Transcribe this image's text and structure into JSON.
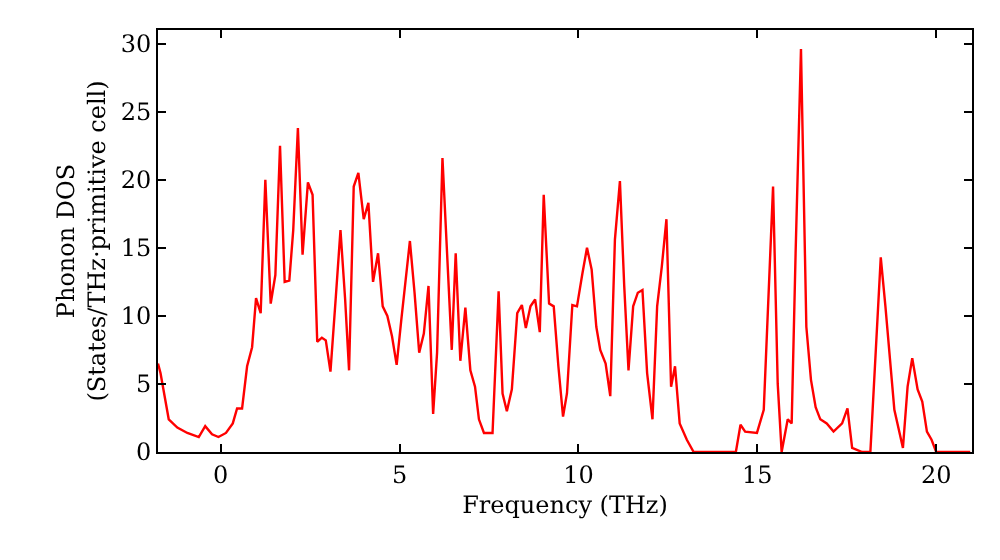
{
  "chart_data": {
    "type": "line",
    "xlabel": "Frequency (THz)",
    "ylabel": "Phonon DOS\n(States/THz·primitive cell)",
    "xlim": [
      -1.75,
      21
    ],
    "ylim": [
      0,
      31
    ],
    "xticks": [
      0,
      5,
      10,
      15,
      20
    ],
    "yticks": [
      0,
      5,
      10,
      15,
      20,
      25,
      30
    ],
    "grid": false,
    "marker": "none",
    "line_style": "solid",
    "x": [
      -1.75,
      -1.68,
      -1.45,
      -1.21,
      -0.93,
      -0.61,
      -0.43,
      -0.24,
      -0.06,
      0.15,
      0.34,
      0.46,
      0.6,
      0.74,
      0.88,
      0.99,
      1.12,
      1.25,
      1.4,
      1.53,
      1.66,
      1.79,
      1.92,
      2.03,
      2.16,
      2.29,
      2.44,
      2.57,
      2.7,
      2.83,
      2.94,
      3.07,
      3.22,
      3.35,
      3.48,
      3.59,
      3.72,
      3.85,
      4.0,
      4.13,
      4.26,
      4.4,
      4.53,
      4.66,
      4.79,
      4.92,
      5.05,
      5.29,
      5.42,
      5.55,
      5.68,
      5.81,
      5.94,
      6.05,
      6.2,
      6.46,
      6.57,
      6.7,
      6.84,
      6.98,
      7.11,
      7.22,
      7.36,
      7.6,
      7.77,
      7.88,
      8.0,
      8.14,
      8.29,
      8.42,
      8.53,
      8.66,
      8.79,
      8.92,
      9.03,
      9.18,
      9.31,
      9.44,
      9.57,
      9.68,
      9.83,
      9.96,
      10.11,
      10.24,
      10.37,
      10.5,
      10.61,
      10.76,
      10.89,
      11.02,
      11.16,
      11.28,
      11.4,
      11.53,
      11.66,
      11.79,
      11.92,
      12.07,
      12.2,
      12.33,
      12.46,
      12.59,
      12.7,
      12.83,
      13.03,
      13.22,
      14.4,
      14.53,
      14.66,
      14.99,
      15.18,
      15.44,
      15.57,
      15.68,
      15.85,
      15.96,
      16.07,
      16.22,
      16.37,
      16.5,
      16.63,
      16.76,
      16.94,
      17.13,
      17.37,
      17.52,
      17.65,
      17.93,
      18.16,
      18.45,
      18.58,
      18.83,
      19.07,
      19.2,
      19.33,
      19.48,
      19.61,
      19.74,
      19.87,
      20.0,
      20.95
    ],
    "series": [
      {
        "color": "#ff0000",
        "values": [
          6.5,
          5.8,
          2.4,
          1.8,
          1.4,
          1.1,
          1.9,
          1.3,
          1.1,
          1.4,
          2.1,
          3.2,
          3.2,
          6.3,
          7.7,
          11.3,
          10.2,
          20,
          10.9,
          13.0,
          22.5,
          12.5,
          12.6,
          16.3,
          23.8,
          14.5,
          19.8,
          18.9,
          8.1,
          8.4,
          8.2,
          5.9,
          11.4,
          16.3,
          11.2,
          6.0,
          19.5,
          20.5,
          17.1,
          18.3,
          12.5,
          14.6,
          10.7,
          10.0,
          8.5,
          6.4,
          9.7,
          15.5,
          11.7,
          7.3,
          8.7,
          12.2,
          2.8,
          7.3,
          21.6,
          7.5,
          14.6,
          6.7,
          10.6,
          6.0,
          4.8,
          2.4,
          1.4,
          1.4,
          11.8,
          4.3,
          3.0,
          4.6,
          10.2,
          10.8,
          9.1,
          10.7,
          11.2,
          8.8,
          18.9,
          10.9,
          10.7,
          6.3,
          2.6,
          4.3,
          10.8,
          10.7,
          13.1,
          15.0,
          13.4,
          9.2,
          7.5,
          6.5,
          4.1,
          15.6,
          19.9,
          12.2,
          6.0,
          10.7,
          11.7,
          11.9,
          5.8,
          2.4,
          10.7,
          13.6,
          17.1,
          4.8,
          6.3,
          2.1,
          0.9,
          0,
          0,
          2.0,
          1.5,
          1.4,
          3.1,
          19.5,
          5.0,
          0,
          2.4,
          2.1,
          14.6,
          29.6,
          9.2,
          5.3,
          3.3,
          2.4,
          2.1,
          1.5,
          2.1,
          3.2,
          0.3,
          0,
          0,
          14.3,
          10.7,
          3.1,
          0.3,
          4.8,
          6.9,
          4.6,
          3.7,
          1.5,
          0.9,
          0,
          0
        ]
      }
    ]
  }
}
